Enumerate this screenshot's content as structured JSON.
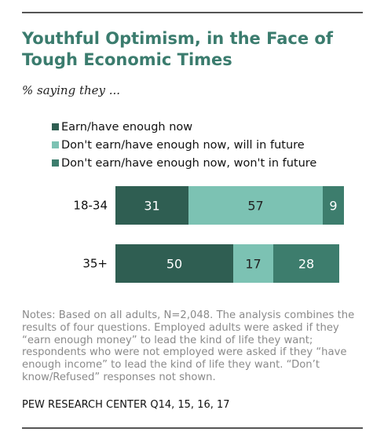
{
  "title": "Youthful Optimism, in the Face of Tough Economic Times",
  "subtitle": "% saying they ...",
  "notes": "Notes: Based on all adults, N=2,048. The analysis combines the results of four questions. Employed adults were asked if they “earn enough money” to lead the kind of life they want; respondents who were not employed were asked if they “have enough income” to lead the kind of life they want. “Don’t know/Refused” responses not shown.",
  "source": "PEW RESEARCH CENTER Q14, 15, 16, 17",
  "colors": {
    "title": "#3b7c6e",
    "series": [
      "#2f5e52",
      "#7cc2b3",
      "#3d7d6d"
    ],
    "label_on_dark": "#ffffff",
    "label_on_light": "#222222"
  },
  "chart_data": {
    "type": "bar",
    "orientation": "horizontal",
    "stacked": true,
    "categories": [
      "18-34",
      "35+"
    ],
    "series": [
      {
        "name": "Earn/have enough now",
        "values": [
          31,
          50
        ]
      },
      {
        "name": "Don't earn/have enough now, will in future",
        "values": [
          57,
          17
        ]
      },
      {
        "name": "Don't earn/have enough now, won't in future",
        "values": [
          9,
          28
        ]
      }
    ],
    "xlim": [
      0,
      100
    ],
    "grid": false,
    "legend": "top-left"
  }
}
